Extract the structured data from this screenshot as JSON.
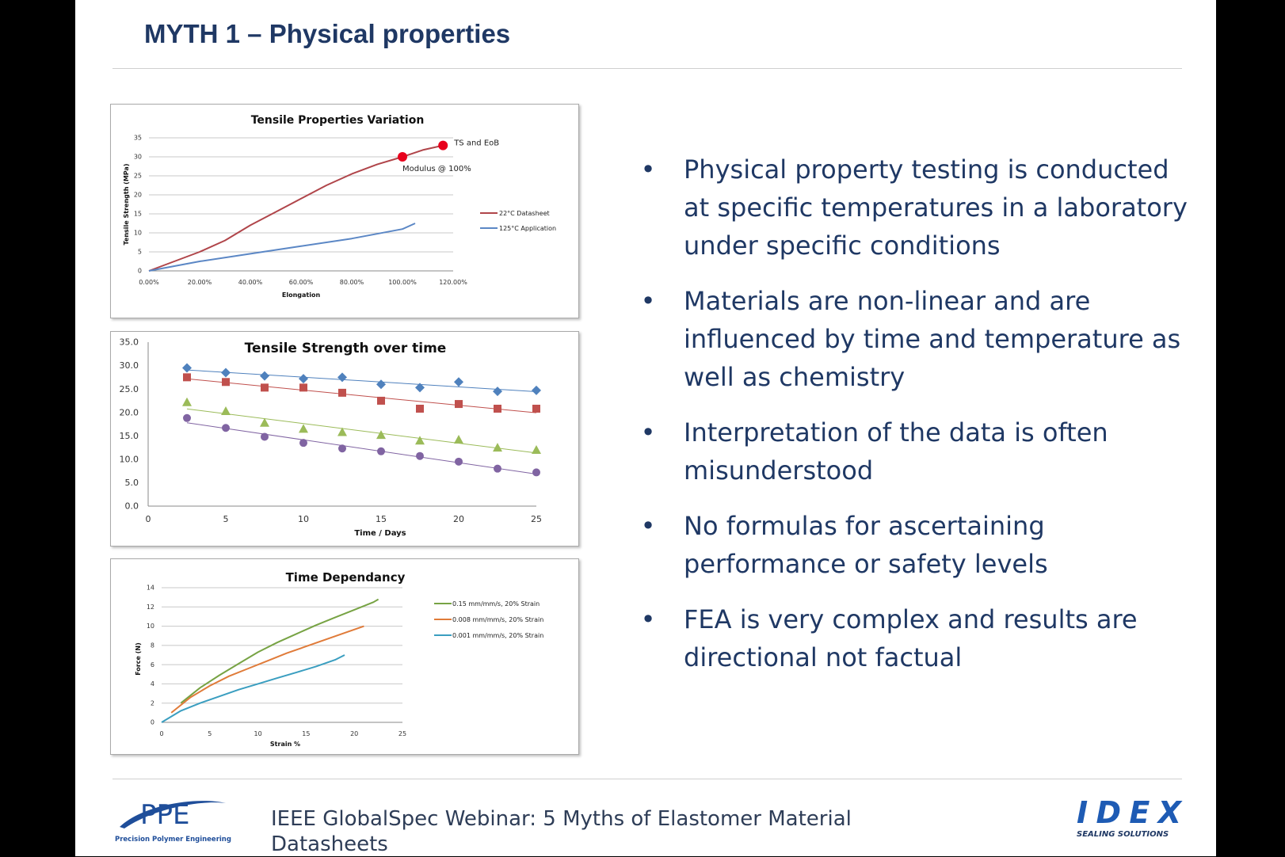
{
  "slide": {
    "title": "MYTH 1 – Physical properties",
    "bullets": [
      "Physical property testing is conducted at specific temperatures in a laboratory under specific conditions",
      "Materials are non-linear and are influenced by time and temperature as well as chemistry",
      "Interpretation of the data is often misunderstood",
      "No formulas for ascertaining performance or safety levels",
      "FEA is very complex and results are directional not factual"
    ],
    "bullet_symbol": "•",
    "footer": {
      "text": "IEEE GlobalSpec Webinar: 5 Myths of Elastomer Material Datasheets",
      "ppe_logo_text": "PPE",
      "ppe_tagline": "Precision Polymer Engineering",
      "idex_logo_text": "IDEX",
      "idex_tagline": "SEALING SOLUTIONS"
    }
  },
  "colors": {
    "title": "#1f3864",
    "bullet_text": "#1f3864",
    "red_series": "#b0454a",
    "blue_series": "#5b87c5",
    "ppe_blue": "#1f4e9a",
    "idex_blue": "#1e5bb4"
  },
  "chart_data": [
    {
      "type": "line",
      "title": "Tensile Properties Variation",
      "xlabel": "Elongation",
      "ylabel": "Tensile Strength (MPa)",
      "xlim": [
        0,
        120
      ],
      "ylim": [
        0,
        35
      ],
      "xticks": [
        "0.00%",
        "20.00%",
        "40.00%",
        "60.00%",
        "80.00%",
        "100.00%",
        "120.00%"
      ],
      "yticks": [
        "0",
        "5",
        "10",
        "15",
        "20",
        "25",
        "30",
        "35"
      ],
      "grid": true,
      "legend_position": "right",
      "series": [
        {
          "name": "22°C Datasheet",
          "color": "#b0454a",
          "x": [
            0,
            10,
            20,
            30,
            40,
            50,
            60,
            70,
            80,
            90,
            100,
            108,
            116
          ],
          "y": [
            0,
            2.5,
            5,
            8,
            12,
            15.5,
            19,
            22.5,
            25.5,
            28,
            30,
            31.8,
            33
          ]
        },
        {
          "name": "125°C Application",
          "color": "#5b87c5",
          "x": [
            0,
            20,
            40,
            60,
            80,
            100,
            105
          ],
          "y": [
            0,
            2.5,
            4.5,
            6.5,
            8.5,
            11,
            12.5
          ]
        }
      ],
      "annotations": [
        {
          "text": "TS and EoB",
          "x": 116,
          "y": 33
        },
        {
          "text": "Modulus @ 100%",
          "x": 100,
          "y": 30
        }
      ]
    },
    {
      "type": "scatter",
      "title": "Tensile Strength over time",
      "xlabel": "Time / Days",
      "ylabel": "",
      "xlim": [
        0,
        25
      ],
      "ylim": [
        0,
        35
      ],
      "xticks": [
        "0",
        "5",
        "10",
        "15",
        "20",
        "25"
      ],
      "yticks": [
        "0.0",
        "5.0",
        "10.0",
        "15.0",
        "20.0",
        "25.0",
        "30.0",
        "35.0"
      ],
      "grid": false,
      "trendlines": true,
      "x": [
        2.5,
        5,
        7.5,
        10,
        12.5,
        15,
        17.5,
        20,
        22.5,
        25
      ],
      "series": [
        {
          "color": "#4f81bd",
          "marker": "diamond",
          "values": [
            29.5,
            28.5,
            27.8,
            27.2,
            27.5,
            26,
            25.3,
            26.5,
            24.5,
            24.7
          ]
        },
        {
          "color": "#c0504d",
          "marker": "square",
          "values": [
            27.5,
            26.5,
            25.3,
            25.3,
            24.2,
            22.5,
            20.8,
            21.8,
            20.8,
            20.8
          ]
        },
        {
          "color": "#9bbb59",
          "marker": "triangle",
          "values": [
            22.2,
            20.3,
            17.8,
            16.5,
            15.8,
            15.2,
            14,
            14.2,
            12.5,
            12
          ]
        },
        {
          "color": "#8064a2",
          "marker": "circle",
          "values": [
            18.8,
            16.7,
            14.8,
            13.5,
            12.3,
            11.7,
            10.7,
            9.5,
            8,
            7.2
          ]
        }
      ]
    },
    {
      "type": "line",
      "title": "Time Dependancy",
      "xlabel": "Strain %",
      "ylabel": "Force (N)",
      "xlim": [
        0,
        25
      ],
      "ylim": [
        0,
        14
      ],
      "xticks": [
        "0",
        "5",
        "10",
        "15",
        "20",
        "25"
      ],
      "yticks": [
        "0",
        "2",
        "4",
        "6",
        "8",
        "10",
        "12",
        "14"
      ],
      "grid": true,
      "legend_position": "right",
      "series": [
        {
          "name": "0.15 mm/mm/s, 20% Strain",
          "color": "#77a344",
          "x": [
            2,
            4,
            6,
            8,
            10,
            12,
            14,
            16,
            18,
            20,
            22,
            22.5
          ],
          "y": [
            2,
            3.6,
            4.9,
            6.1,
            7.3,
            8.3,
            9.2,
            10.1,
            10.9,
            11.7,
            12.5,
            12.8
          ]
        },
        {
          "name": "0.008 mm/mm/s, 20% Strain",
          "color": "#e07b39",
          "x": [
            1,
            3,
            5,
            7,
            9,
            11,
            13,
            15,
            17,
            19,
            21
          ],
          "y": [
            1,
            2.6,
            3.8,
            4.8,
            5.6,
            6.4,
            7.2,
            7.9,
            8.6,
            9.3,
            10
          ]
        },
        {
          "name": "0.001 mm/mm/s, 20% Strain",
          "color": "#3a9ec0",
          "x": [
            0,
            2,
            4,
            6,
            8,
            10,
            12,
            14,
            16,
            18,
            19
          ],
          "y": [
            0,
            1.2,
            2,
            2.7,
            3.4,
            4,
            4.6,
            5.2,
            5.8,
            6.5,
            7
          ]
        }
      ]
    }
  ]
}
